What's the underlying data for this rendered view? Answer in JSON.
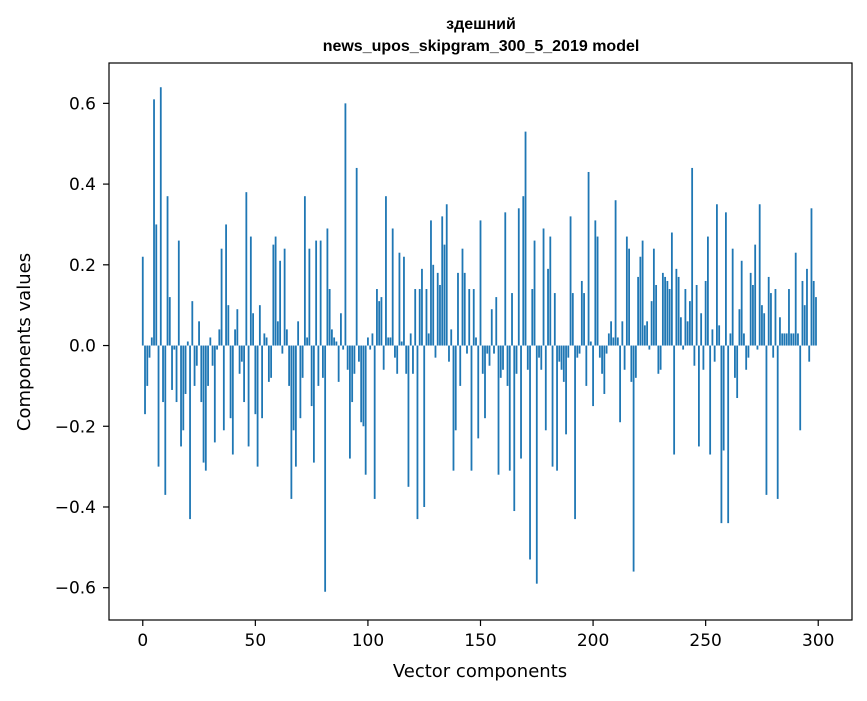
{
  "chart_data": {
    "type": "bar",
    "title_line1": "здешний",
    "title_line2": "news_upos_skipgram_300_5_2019 model",
    "xlabel": "Vector components",
    "ylabel": "Components values",
    "xlim": [
      -15,
      315
    ],
    "ylim": [
      -0.68,
      0.7
    ],
    "xticks": [
      0,
      50,
      100,
      150,
      200,
      250,
      300
    ],
    "xtick_labels": [
      "0",
      "50",
      "100",
      "150",
      "200",
      "250",
      "300"
    ],
    "yticks": [
      -0.6,
      -0.4,
      -0.2,
      0.0,
      0.2,
      0.4,
      0.6
    ],
    "ytick_labels": [
      "−0.6",
      "−0.4",
      "−0.2",
      "0.0",
      "0.2",
      "0.4",
      "0.6"
    ],
    "bar_color": "#1f77b4",
    "grid": false,
    "values": [
      0.22,
      -0.17,
      -0.1,
      -0.03,
      0.02,
      0.61,
      0.3,
      -0.3,
      0.64,
      -0.14,
      -0.37,
      0.37,
      0.12,
      -0.11,
      -0.01,
      -0.14,
      0.26,
      -0.25,
      -0.21,
      -0.12,
      0.01,
      -0.43,
      0.11,
      -0.1,
      -0.05,
      0.06,
      -0.14,
      -0.29,
      -0.31,
      -0.1,
      0.02,
      -0.05,
      -0.24,
      -0.01,
      0.04,
      0.24,
      -0.21,
      0.3,
      0.1,
      -0.18,
      -0.27,
      0.04,
      0.09,
      -0.07,
      -0.04,
      -0.14,
      0.38,
      -0.25,
      0.27,
      0.08,
      -0.17,
      -0.3,
      0.1,
      -0.18,
      0.03,
      0.02,
      -0.09,
      -0.08,
      0.25,
      0.27,
      0.06,
      0.21,
      -0.02,
      0.24,
      0.04,
      -0.1,
      -0.38,
      -0.21,
      -0.3,
      0.06,
      -0.18,
      -0.08,
      0.37,
      0.02,
      0.24,
      -0.15,
      -0.29,
      0.26,
      -0.1,
      0.26,
      -0.08,
      -0.61,
      0.29,
      0.14,
      0.04,
      0.02,
      0.01,
      -0.09,
      0.08,
      -0.01,
      0.6,
      -0.06,
      -0.28,
      -0.14,
      -0.07,
      0.44,
      -0.04,
      -0.19,
      -0.2,
      -0.32,
      0.02,
      -0.01,
      0.03,
      -0.38,
      0.14,
      0.11,
      0.12,
      -0.06,
      0.37,
      0.02,
      0.02,
      0.29,
      -0.03,
      -0.07,
      0.23,
      0.01,
      0.22,
      -0.07,
      -0.35,
      0.03,
      -0.07,
      0.14,
      -0.43,
      0.14,
      0.19,
      -0.4,
      0.14,
      0.03,
      0.31,
      0.2,
      -0.03,
      0.18,
      0.15,
      0.32,
      0.25,
      0.35,
      -0.04,
      0.04,
      -0.31,
      -0.21,
      0.18,
      -0.1,
      0.24,
      0.18,
      -0.02,
      0.14,
      -0.31,
      0.14,
      0.02,
      -0.23,
      0.31,
      -0.07,
      -0.18,
      -0.02,
      -0.05,
      0.09,
      -0.02,
      0.12,
      -0.32,
      -0.08,
      -0.06,
      0.33,
      -0.1,
      -0.31,
      0.13,
      -0.41,
      -0.07,
      0.34,
      -0.28,
      0.37,
      0.53,
      -0.06,
      -0.53,
      0.14,
      0.26,
      -0.59,
      -0.03,
      -0.06,
      0.29,
      -0.21,
      0.19,
      0.27,
      -0.3,
      0.13,
      -0.31,
      -0.04,
      -0.06,
      -0.09,
      -0.22,
      -0.03,
      0.32,
      0.13,
      -0.43,
      -0.03,
      -0.02,
      0.16,
      0.13,
      -0.1,
      0.43,
      0.01,
      -0.15,
      0.31,
      0.27,
      -0.03,
      -0.07,
      -0.12,
      -0.02,
      0.03,
      0.06,
      0.02,
      0.36,
      0.02,
      -0.19,
      0.06,
      -0.06,
      0.27,
      0.24,
      -0.09,
      -0.56,
      -0.08,
      0.17,
      0.22,
      0.26,
      0.05,
      0.06,
      -0.01,
      0.11,
      0.24,
      0.15,
      -0.07,
      -0.06,
      0.18,
      0.17,
      0.16,
      0.14,
      0.28,
      -0.27,
      0.19,
      0.17,
      0.07,
      -0.01,
      0.14,
      0.06,
      0.11,
      0.44,
      -0.05,
      0.15,
      -0.25,
      0.08,
      -0.06,
      0.16,
      0.27,
      -0.27,
      0.04,
      -0.04,
      0.35,
      0.05,
      -0.44,
      -0.26,
      0.33,
      -0.44,
      0.03,
      0.24,
      -0.08,
      -0.13,
      0.09,
      0.21,
      0.03,
      -0.06,
      -0.03,
      0.18,
      0.15,
      0.25,
      -0.01,
      0.35,
      0.1,
      0.08,
      -0.37,
      0.17,
      0.13,
      -0.03,
      0.14,
      -0.38,
      0.07,
      0.03,
      0.03,
      0.03,
      0.14,
      0.03,
      0.03,
      0.23,
      0.03,
      -0.21,
      0.16,
      0.1,
      0.19,
      -0.04,
      0.34,
      0.16,
      0.12
    ]
  }
}
